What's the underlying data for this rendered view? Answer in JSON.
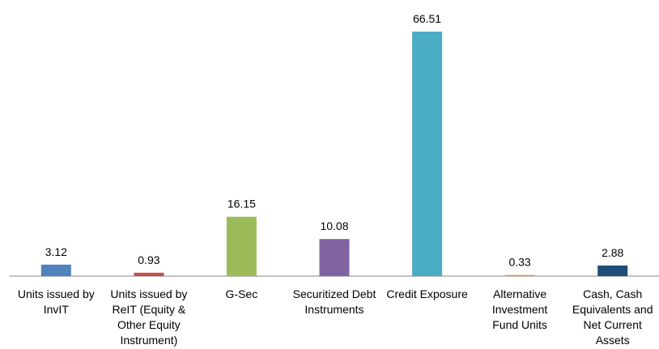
{
  "chart_data": {
    "type": "bar",
    "categories": [
      [
        "Units issued by",
        "InvIT"
      ],
      [
        "Units issued by",
        "ReIT (Equity &",
        "Other Equity",
        "Instrument)"
      ],
      [
        "G-Sec"
      ],
      [
        "Securitized Debt",
        "Instruments"
      ],
      [
        "Credit Exposure"
      ],
      [
        "Alternative",
        "Investment",
        "Fund Units"
      ],
      [
        "Cash, Cash",
        "Equivalents and",
        "Net Current",
        "Assets"
      ]
    ],
    "values": [
      3.12,
      0.93,
      16.15,
      10.08,
      66.51,
      0.33,
      2.88
    ],
    "value_labels": [
      "3.12",
      "0.93",
      "16.15",
      "10.08",
      "66.51",
      "0.33",
      "2.88"
    ],
    "colors": [
      "#4f81bd",
      "#c0504d",
      "#9bbb59",
      "#8064a2",
      "#4bacc6",
      "#f79646",
      "#1f4e79"
    ],
    "title": "",
    "xlabel": "",
    "ylabel": "",
    "ylim": [
      0,
      70
    ],
    "grid": false,
    "legend": "none"
  }
}
